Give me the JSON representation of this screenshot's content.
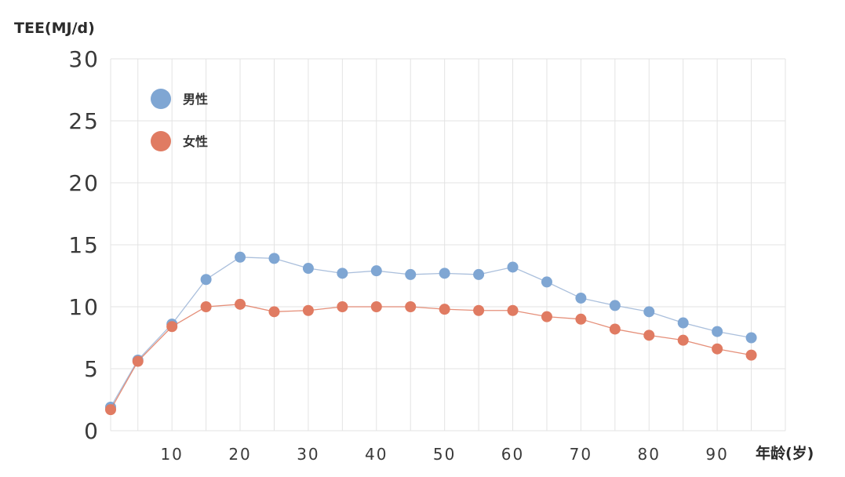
{
  "chart_data": {
    "type": "line",
    "ylabel": "TEE(MJ/d)",
    "xlabel": "年龄(岁)",
    "x": [
      1,
      5,
      10,
      15,
      20,
      25,
      30,
      35,
      40,
      45,
      50,
      55,
      60,
      65,
      70,
      75,
      80,
      85,
      90,
      95
    ],
    "x_ticks": [
      10,
      20,
      30,
      40,
      50,
      60,
      70,
      80,
      90
    ],
    "y_ticks": [
      0,
      5,
      10,
      15,
      20,
      25,
      30
    ],
    "xlim": [
      1,
      100
    ],
    "ylim": [
      0,
      30
    ],
    "grid": true,
    "legend_position": "top-left",
    "series": [
      {
        "name": "男性",
        "color": "#9bb4d6",
        "marker_color": "#7fa6d3",
        "values": [
          1.9,
          5.7,
          8.6,
          12.2,
          14.0,
          13.9,
          13.1,
          12.7,
          12.9,
          12.6,
          12.7,
          12.6,
          13.2,
          12.0,
          10.7,
          10.1,
          9.6,
          8.7,
          8.0,
          7.5
        ]
      },
      {
        "name": "女性",
        "color": "#e07b62",
        "marker_color": "#e07b62",
        "values": [
          1.7,
          5.6,
          8.4,
          10.0,
          10.2,
          9.6,
          9.7,
          10.0,
          10.0,
          10.0,
          9.8,
          9.7,
          9.7,
          9.2,
          9.0,
          8.2,
          7.7,
          7.3,
          6.6,
          6.1
        ]
      }
    ]
  }
}
